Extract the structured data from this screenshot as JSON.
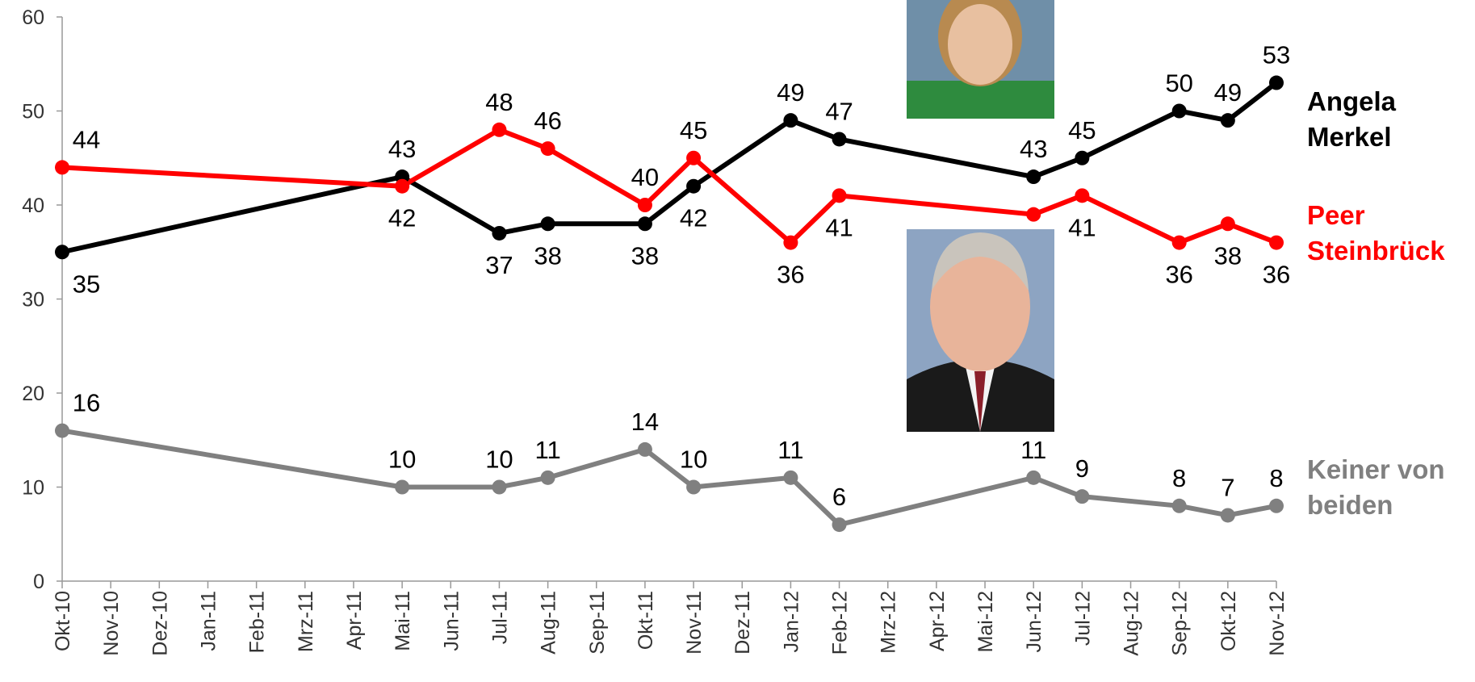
{
  "chart_data": {
    "type": "line",
    "categories": [
      "Okt-10",
      "Nov-10",
      "Dez-10",
      "Jan-11",
      "Feb-11",
      "Mrz-11",
      "Apr-11",
      "Mai-11",
      "Jun-11",
      "Jul-11",
      "Aug-11",
      "Sep-11",
      "Okt-11",
      "Nov-11",
      "Dez-11",
      "Jan-12",
      "Feb-12",
      "Mrz-12",
      "Apr-12",
      "Mai-12",
      "Jun-12",
      "Jul-12",
      "Aug-12",
      "Sep-12",
      "Okt-12",
      "Nov-12"
    ],
    "ylim": [
      0,
      60
    ],
    "yticks": [
      0,
      10,
      20,
      30,
      40,
      50,
      60
    ],
    "series": [
      {
        "name": "Angela Merkel",
        "color": "#000000",
        "x": [
          "Okt-10",
          "Mai-11",
          "Jul-11",
          "Aug-11",
          "Okt-11",
          "Nov-11",
          "Jan-12",
          "Feb-12",
          "Jun-12",
          "Jul-12",
          "Sep-12",
          "Okt-12",
          "Nov-12"
        ],
        "values": [
          35,
          43,
          37,
          38,
          38,
          42,
          49,
          47,
          43,
          45,
          50,
          49,
          53
        ]
      },
      {
        "name": "Peer Steinbrück",
        "color": "#ff0000",
        "x": [
          "Okt-10",
          "Mai-11",
          "Jul-11",
          "Aug-11",
          "Okt-11",
          "Nov-11",
          "Jan-12",
          "Feb-12",
          "Jun-12",
          "Jul-12",
          "Sep-12",
          "Okt-12",
          "Nov-12"
        ],
        "values": [
          44,
          42,
          48,
          46,
          40,
          45,
          36,
          41,
          39,
          41,
          36,
          38,
          36
        ],
        "value_labels": [
          "44",
          "42",
          "48",
          "46",
          "40",
          "45",
          "36",
          "41",
          null,
          "41",
          "36",
          "38",
          "36"
        ]
      },
      {
        "name": "Keiner von beiden",
        "color": "#808080",
        "x": [
          "Okt-10",
          "Mai-11",
          "Jul-11",
          "Aug-11",
          "Okt-11",
          "Nov-11",
          "Jan-12",
          "Feb-12",
          "Jun-12",
          "Jul-12",
          "Sep-12",
          "Okt-12",
          "Nov-12"
        ],
        "values": [
          16,
          10,
          10,
          11,
          14,
          10,
          11,
          6,
          11,
          9,
          8,
          7,
          8
        ]
      }
    ]
  }
}
